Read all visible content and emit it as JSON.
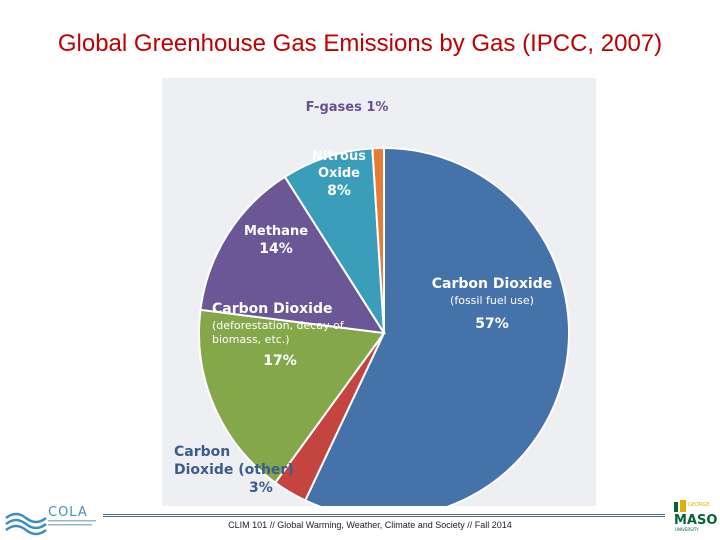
{
  "slide_title": "Global Greenhouse Gas Emissions by Gas (IPCC, 2007)",
  "footer": "CLIM 101 // Global Warming, Weather, Climate and Society // Fall 2014",
  "logos": {
    "left": "COLA",
    "right": "GEORGE MASON UNIVERSITY"
  },
  "colors": {
    "title": "#c00000",
    "panel": "#edeff2"
  },
  "chart_data": {
    "type": "pie",
    "title": "",
    "slices": [
      {
        "label": "Carbon Dioxide",
        "sublabel": "(fossil fuel use)",
        "percent_label": "57%",
        "value": 57,
        "color": "#4672aa"
      },
      {
        "label": "Carbon Dioxide (other)",
        "sublabel": "",
        "percent_label": "3%",
        "value": 3,
        "color": "#c44440"
      },
      {
        "label": "Carbon Dioxide",
        "sublabel": "(deforestation, decay of biomass, etc.)",
        "percent_label": "17%",
        "value": 17,
        "color": "#84a74a"
      },
      {
        "label": "Methane",
        "sublabel": "",
        "percent_label": "14%",
        "value": 14,
        "color": "#6c5796"
      },
      {
        "label": "Nitrous Oxide",
        "sublabel": "",
        "percent_label": "8%",
        "value": 8,
        "color": "#3a9dba"
      },
      {
        "label": "F-gases",
        "sublabel": "",
        "percent_label": "1%",
        "value": 1,
        "color": "#e67c36"
      }
    ]
  }
}
